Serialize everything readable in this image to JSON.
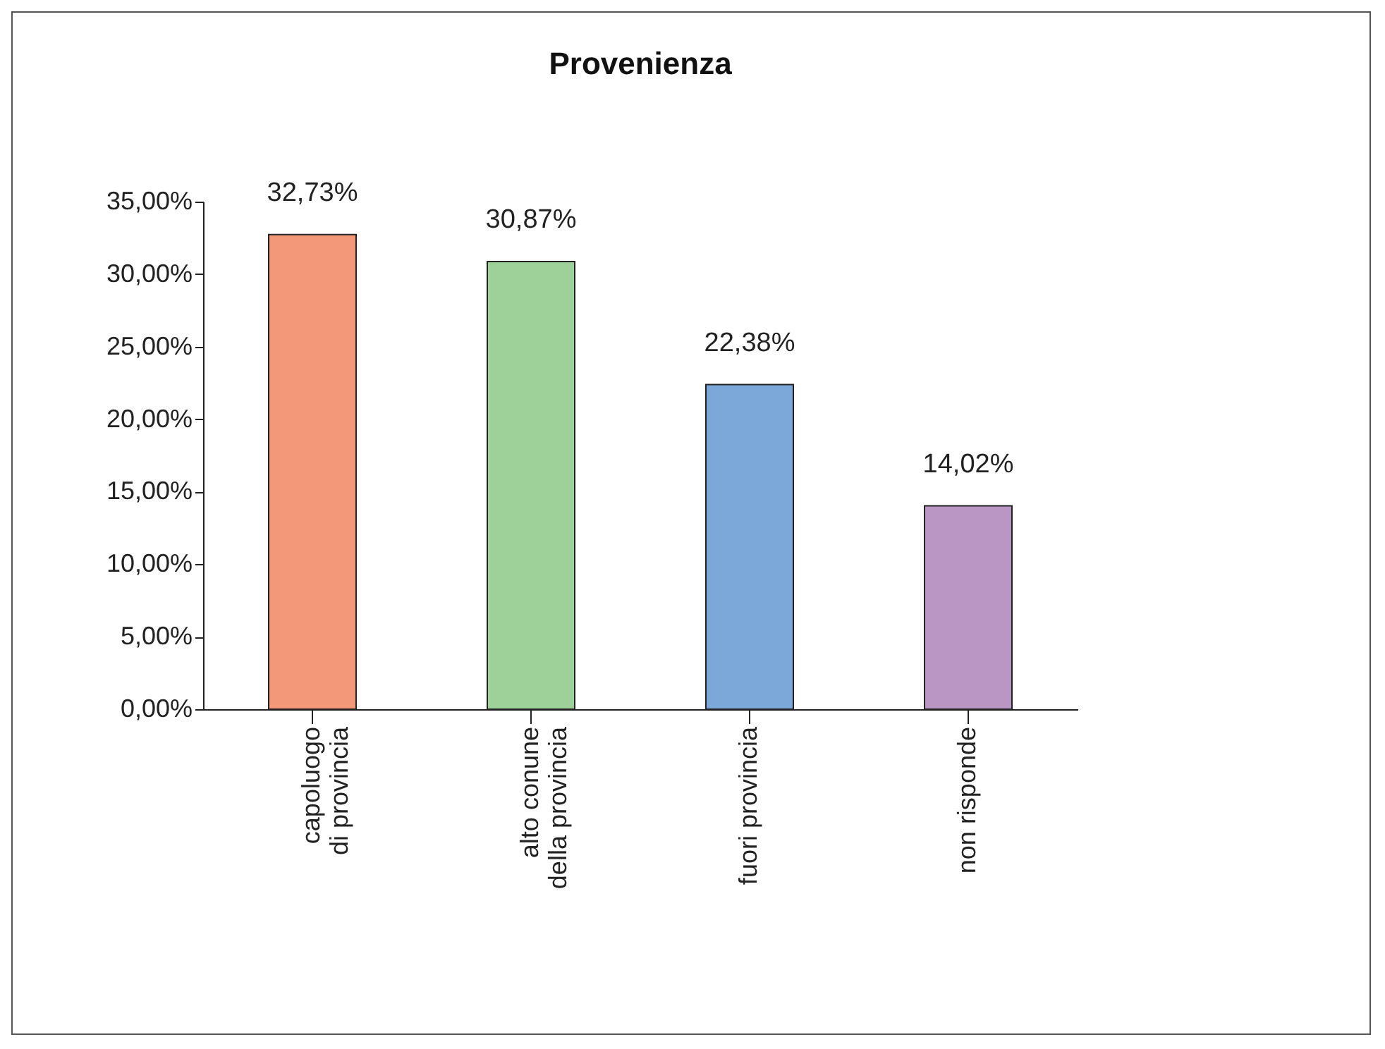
{
  "chart_data": {
    "type": "bar",
    "title": "Provenienza",
    "categories": [
      "capoluogo di provincia",
      "alto conune della provincia",
      "fuori provincia",
      "non risponde"
    ],
    "values": [
      32.73,
      30.87,
      22.38,
      14.02
    ],
    "colors": [
      "#f4987a",
      "#9ed19a",
      "#7ba7d9",
      "#b996c4"
    ],
    "value_labels": [
      "32,73%",
      "30,87%",
      "22,38%",
      "14,02%"
    ],
    "ylim": [
      0,
      35
    ],
    "yticks": [
      {
        "value": 0,
        "label": "0,00%"
      },
      {
        "value": 5,
        "label": "5,00%"
      },
      {
        "value": 10,
        "label": "10,00%"
      },
      {
        "value": 15,
        "label": "15,00%"
      },
      {
        "value": 20,
        "label": "20,00%"
      },
      {
        "value": 25,
        "label": "25,00%"
      },
      {
        "value": 30,
        "label": "30,00%"
      },
      {
        "value": 35,
        "label": "35,00%"
      }
    ],
    "grid": false,
    "legend": false
  }
}
